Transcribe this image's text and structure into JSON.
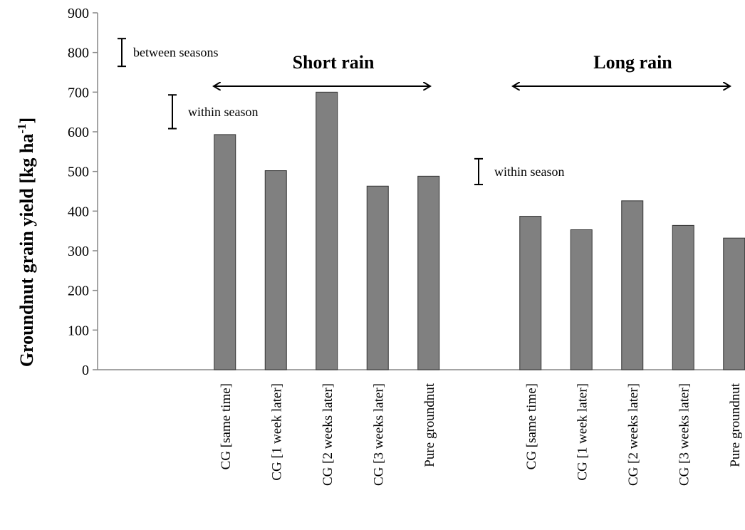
{
  "chart_data": {
    "type": "bar",
    "title": "",
    "xlabel": "",
    "ylabel": "Groundnut grain yield [kg ha",
    "ylabel_sup": "-1",
    "ylabel_close": "]",
    "ylim": [
      0,
      900
    ],
    "yticks": [
      "0",
      "100",
      "200",
      "300",
      "400",
      "500",
      "600",
      "700",
      "800",
      "900"
    ],
    "grid": false,
    "bar_color": "#808080",
    "categories": [
      "CG [same time]",
      "CG [1 week later]",
      "CG [2 weeks later]",
      "CG [3 weeks later]",
      "Pure groundnut",
      "CG [same time]",
      "CG [1 week later]",
      "CG [2 weeks later]",
      "CG [3 weeks later]",
      "Pure groundnut"
    ],
    "values": [
      593,
      502,
      700,
      463,
      488,
      387,
      353,
      426,
      364,
      332
    ],
    "seasons": [
      {
        "label": "Short rain",
        "start_index": 0,
        "end_index": 4
      },
      {
        "label": "Long rain",
        "start_index": 5,
        "end_index": 9
      }
    ],
    "error_bars": [
      {
        "label": "between seasons",
        "low": 765,
        "high": 835
      },
      {
        "label": "within season",
        "low": 608,
        "high": 693
      },
      {
        "label": "within season",
        "low": 467,
        "high": 532
      }
    ]
  }
}
